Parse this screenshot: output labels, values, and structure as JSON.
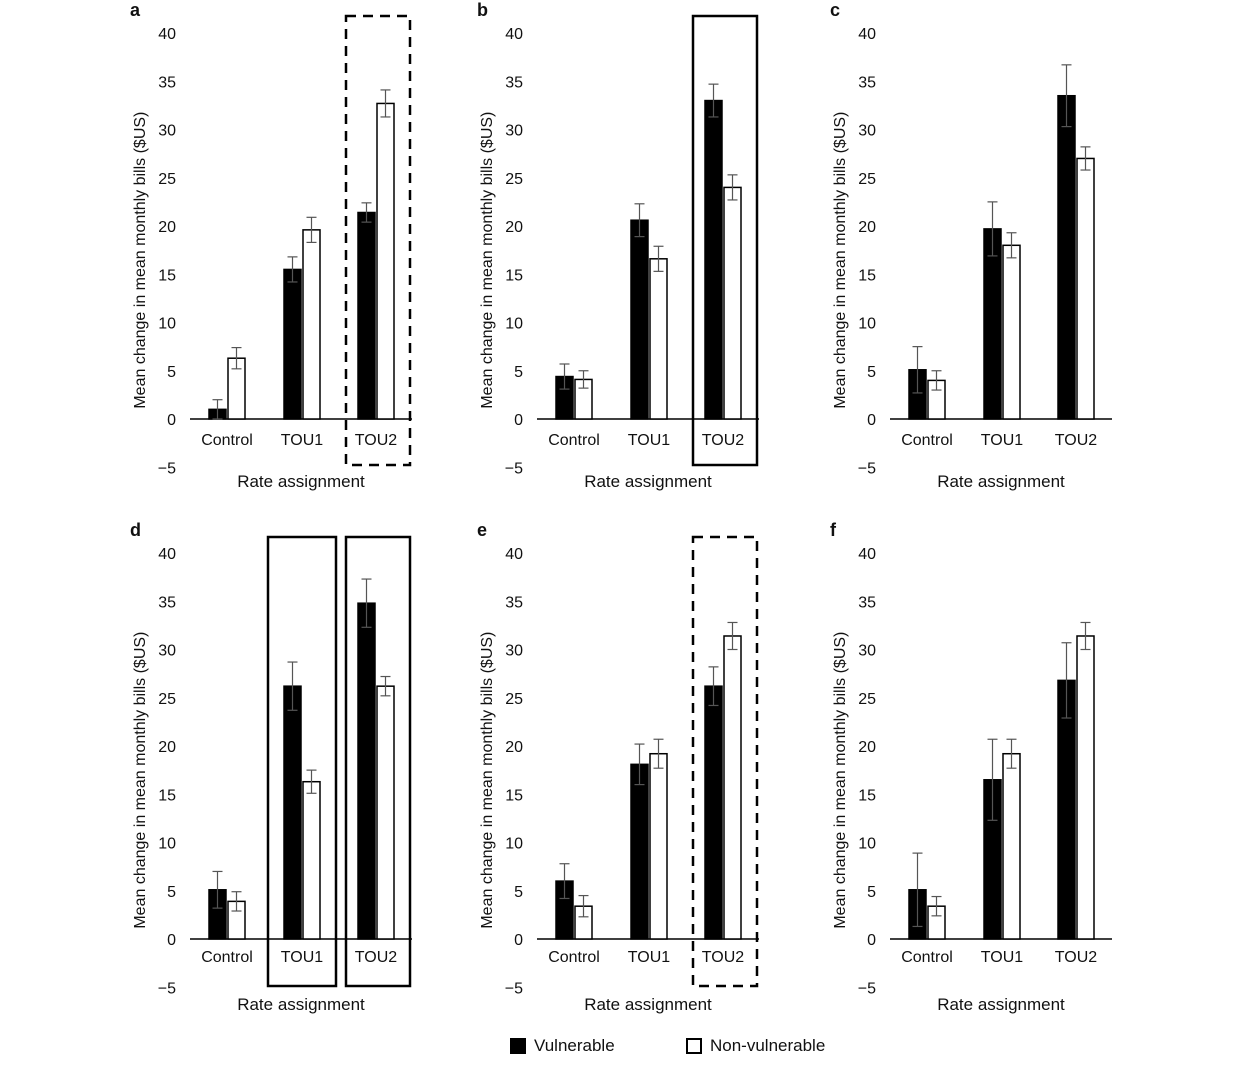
{
  "chart_data": [
    {
      "panel": "a",
      "type": "bar",
      "categories": [
        "Control",
        "TOU1",
        "TOU2"
      ],
      "series": [
        {
          "name": "Vulnerable",
          "values": [
            1.0,
            15.5,
            21.4
          ],
          "errors": [
            1.0,
            1.3,
            1.0
          ]
        },
        {
          "name": "Non-vulnerable",
          "values": [
            6.3,
            19.6,
            32.7
          ],
          "errors": [
            1.1,
            1.3,
            1.4
          ]
        }
      ],
      "xlabel": "Rate assignment",
      "ylabel": "Mean change in mean monthly bills ($US)",
      "ylim": [
        -5,
        40
      ],
      "yticks": [
        -5,
        0,
        5,
        10,
        15,
        20,
        25,
        30,
        35,
        40
      ],
      "highlight": [
        {
          "categories": [
            "TOU2"
          ],
          "style": "dashed"
        }
      ]
    },
    {
      "panel": "b",
      "type": "bar",
      "categories": [
        "Control",
        "TOU1",
        "TOU2"
      ],
      "series": [
        {
          "name": "Vulnerable",
          "values": [
            4.4,
            20.6,
            33.0
          ],
          "errors": [
            1.3,
            1.7,
            1.7
          ]
        },
        {
          "name": "Non-vulnerable",
          "values": [
            4.1,
            16.6,
            24.0
          ],
          "errors": [
            0.9,
            1.3,
            1.3
          ]
        }
      ],
      "xlabel": "Rate assignment",
      "ylabel": "Mean change in mean monthly bills ($US)",
      "ylim": [
        -5,
        40
      ],
      "yticks": [
        -5,
        0,
        5,
        10,
        15,
        20,
        25,
        30,
        35,
        40
      ],
      "highlight": [
        {
          "categories": [
            "TOU2"
          ],
          "style": "solid"
        }
      ]
    },
    {
      "panel": "c",
      "type": "bar",
      "categories": [
        "Control",
        "TOU1",
        "TOU2"
      ],
      "series": [
        {
          "name": "Vulnerable",
          "values": [
            5.1,
            19.7,
            33.5
          ],
          "errors": [
            2.4,
            2.8,
            3.2
          ]
        },
        {
          "name": "Non-vulnerable",
          "values": [
            4.0,
            18.0,
            27.0
          ],
          "errors": [
            1.0,
            1.3,
            1.2
          ]
        }
      ],
      "xlabel": "Rate assignment",
      "ylabel": "Mean change in mean monthly bills ($US)",
      "ylim": [
        -5,
        40
      ],
      "yticks": [
        -5,
        0,
        5,
        10,
        15,
        20,
        25,
        30,
        35,
        40
      ],
      "highlight": []
    },
    {
      "panel": "d",
      "type": "bar",
      "categories": [
        "Control",
        "TOU1",
        "TOU2"
      ],
      "series": [
        {
          "name": "Vulnerable",
          "values": [
            5.1,
            26.2,
            34.8
          ],
          "errors": [
            1.9,
            2.5,
            2.5
          ]
        },
        {
          "name": "Non-vulnerable",
          "values": [
            3.9,
            16.3,
            26.2
          ],
          "errors": [
            1.0,
            1.2,
            1.0
          ]
        }
      ],
      "xlabel": "Rate assignment",
      "ylabel": "Mean change in mean monthly bills ($US)",
      "ylim": [
        -5,
        40
      ],
      "yticks": [
        -5,
        0,
        5,
        10,
        15,
        20,
        25,
        30,
        35,
        40
      ],
      "highlight": [
        {
          "categories": [
            "TOU1"
          ],
          "style": "solid"
        },
        {
          "categories": [
            "TOU2"
          ],
          "style": "solid"
        }
      ]
    },
    {
      "panel": "e",
      "type": "bar",
      "categories": [
        "Control",
        "TOU1",
        "TOU2"
      ],
      "series": [
        {
          "name": "Vulnerable",
          "values": [
            6.0,
            18.1,
            26.2
          ],
          "errors": [
            1.8,
            2.1,
            2.0
          ]
        },
        {
          "name": "Non-vulnerable",
          "values": [
            3.4,
            19.2,
            31.4
          ],
          "errors": [
            1.1,
            1.5,
            1.4
          ]
        }
      ],
      "xlabel": "Rate assignment",
      "ylabel": "Mean change in mean monthly bills ($US)",
      "ylim": [
        -5,
        40
      ],
      "yticks": [
        -5,
        0,
        5,
        10,
        15,
        20,
        25,
        30,
        35,
        40
      ],
      "highlight": [
        {
          "categories": [
            "TOU2"
          ],
          "style": "dashed"
        }
      ]
    },
    {
      "panel": "f",
      "type": "bar",
      "categories": [
        "Control",
        "TOU1",
        "TOU2"
      ],
      "series": [
        {
          "name": "Vulnerable",
          "values": [
            5.1,
            16.5,
            26.8
          ],
          "errors": [
            3.8,
            4.2,
            3.9
          ]
        },
        {
          "name": "Non-vulnerable",
          "values": [
            3.4,
            19.2,
            31.4
          ],
          "errors": [
            1.0,
            1.5,
            1.4
          ]
        }
      ],
      "xlabel": "Rate assignment",
      "ylabel": "Mean change in mean monthly bills ($US)",
      "ylim": [
        -5,
        40
      ],
      "yticks": [
        -5,
        0,
        5,
        10,
        15,
        20,
        25,
        30,
        35,
        40
      ],
      "highlight": []
    }
  ],
  "legend": {
    "items": [
      {
        "label": "Vulnerable",
        "fill": "#000000"
      },
      {
        "label": "Non-vulnerable",
        "fill": "#ffffff"
      }
    ]
  }
}
